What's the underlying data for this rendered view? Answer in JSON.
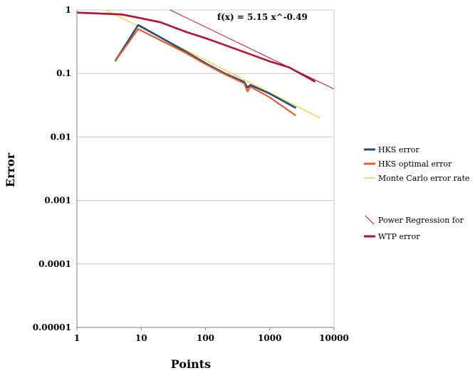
{
  "chart_data": {
    "type": "line",
    "title": "",
    "xlabel": "Points",
    "ylabel": "Error",
    "x_scale": "log",
    "y_scale": "log",
    "xlim": [
      1,
      10000
    ],
    "ylim": [
      1e-05,
      1
    ],
    "x_ticks": [
      "1",
      "10",
      "100",
      "1000",
      "10000"
    ],
    "y_ticks": [
      "1",
      "0.1",
      "0.01",
      "0.001",
      "0.0001",
      "0.00001"
    ],
    "grid": "horizontal",
    "legend_position": "right",
    "annotation": "f(x) = 5.15 x^-0.49",
    "series": [
      {
        "name": "HKS error",
        "color": "#1f4e79",
        "points": [
          [
            4,
            0.16
          ],
          [
            9,
            0.58
          ],
          [
            50,
            0.22
          ],
          [
            100,
            0.145
          ],
          [
            200,
            0.1
          ],
          [
            400,
            0.074
          ],
          [
            450,
            0.06
          ],
          [
            500,
            0.066
          ],
          [
            1000,
            0.048
          ],
          [
            2500,
            0.029
          ]
        ]
      },
      {
        "name": "HKS optimal error",
        "color": "#e8592c",
        "points": [
          [
            4,
            0.16
          ],
          [
            9,
            0.5
          ],
          [
            50,
            0.21
          ],
          [
            100,
            0.14
          ],
          [
            200,
            0.097
          ],
          [
            400,
            0.07
          ],
          [
            450,
            0.052
          ],
          [
            500,
            0.062
          ],
          [
            1000,
            0.042
          ],
          [
            2500,
            0.022
          ]
        ]
      },
      {
        "name": "Monte Carlo error rate",
        "color": "#f3cf45",
        "points": [
          [
            1,
            1.7
          ],
          [
            6000,
            0.02
          ]
        ]
      },
      {
        "name": "Power Regression for",
        "color": "#b5102e",
        "points": [
          [
            25,
            1.06
          ],
          [
            10000,
            0.057
          ]
        ]
      },
      {
        "name": "WTP error",
        "color": "#b5102e",
        "points": [
          [
            1,
            0.91
          ],
          [
            5,
            0.85
          ],
          [
            10,
            0.74
          ],
          [
            20,
            0.64
          ],
          [
            50,
            0.45
          ],
          [
            100,
            0.36
          ],
          [
            200,
            0.28
          ],
          [
            500,
            0.2
          ],
          [
            1000,
            0.155
          ],
          [
            2000,
            0.125
          ],
          [
            5000,
            0.075
          ]
        ]
      }
    ]
  }
}
